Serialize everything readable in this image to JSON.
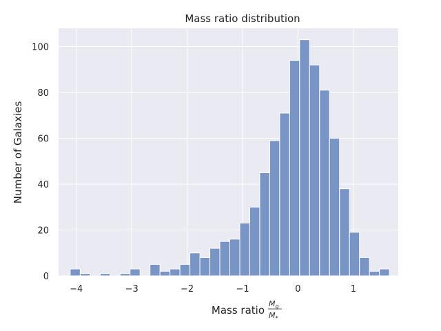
{
  "chart_data": {
    "type": "bar",
    "title": "Mass ratio distribution",
    "xlabel": "Mass ratio",
    "xlabel_fraction": {
      "numerator": "M",
      "numerator_sub": "g",
      "denominator": "M",
      "denominator_sub": "*"
    },
    "ylabel": "Number of Galaxies",
    "xlim": [
      -4.32,
      1.81
    ],
    "ylim": [
      0,
      108
    ],
    "xticks": [
      -4,
      -3,
      -2,
      -1,
      0,
      1
    ],
    "xtick_labels": [
      "−4",
      "−3",
      "−2",
      "−1",
      "0",
      "1"
    ],
    "yticks": [
      0,
      20,
      40,
      60,
      80,
      100
    ],
    "ytick_labels": [
      "0",
      "20",
      "40",
      "60",
      "80",
      "100"
    ],
    "grid": true,
    "bin_start": -4.11,
    "bin_width": 0.18,
    "counts": [
      3,
      1,
      0,
      1,
      0,
      1,
      3,
      0,
      5,
      2,
      3,
      5,
      10,
      8,
      12,
      15,
      16,
      23,
      30,
      45,
      59,
      71,
      94,
      103,
      92,
      81,
      60,
      38,
      19,
      8,
      2,
      3
    ],
    "colors": {
      "background": "#eaeaf2",
      "bar_fill": "#7895c6",
      "bar_edge": "#ffffff",
      "grid": "#ffffff"
    }
  }
}
